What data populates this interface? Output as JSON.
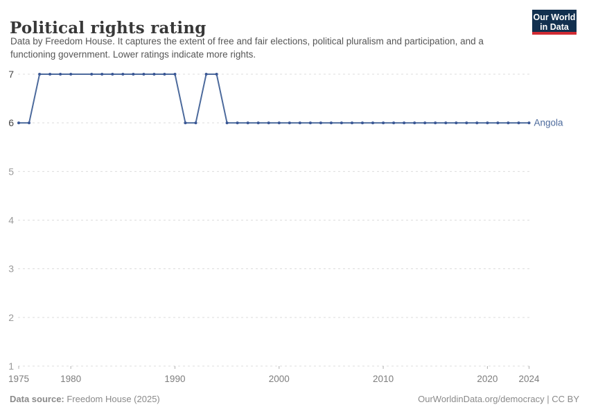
{
  "header": {
    "title": "Political rights rating",
    "subtitle": "Data by Freedom House. It captures the extent of free and fair elections, political pluralism and participation, and a functioning government. Lower ratings indicate more rights.",
    "logo": {
      "line1": "Our World",
      "line2": "in Data",
      "bg_color": "#12304f",
      "accent_color": "#d12b33"
    }
  },
  "chart_data": {
    "type": "line",
    "title": "Political rights rating",
    "entity_label": "Angola",
    "x_range": [
      1975,
      2024
    ],
    "y_range": [
      1,
      7
    ],
    "x_ticks": [
      1975,
      1980,
      1990,
      2000,
      2010,
      2020,
      2024
    ],
    "y_ticks": [
      1,
      2,
      3,
      4,
      5,
      6,
      7
    ],
    "grid": "horizontal-dashed",
    "legend_position": "end-of-line",
    "colors": {
      "line": "#4c6a9c",
      "marker": "#3a5795",
      "gridline": "#dcdcdc",
      "axis_label_active": "#474747",
      "axis_label_faded": "#9a9a9a",
      "x_axis_label": "#7d7d7d",
      "tick_mark": "#b0b0b0"
    },
    "series": [
      {
        "name": "Angola",
        "color": "#4c6a9c",
        "marker_color": "#3a5795",
        "points": [
          [
            1975,
            6
          ],
          [
            1976,
            6
          ],
          [
            1977,
            7
          ],
          [
            1978,
            7
          ],
          [
            1979,
            7
          ],
          [
            1980,
            7
          ],
          [
            1982,
            7
          ],
          [
            1983,
            7
          ],
          [
            1984,
            7
          ],
          [
            1985,
            7
          ],
          [
            1986,
            7
          ],
          [
            1987,
            7
          ],
          [
            1988,
            7
          ],
          [
            1989,
            7
          ],
          [
            1990,
            7
          ],
          [
            1991,
            6
          ],
          [
            1992,
            6
          ],
          [
            1993,
            7
          ],
          [
            1994,
            7
          ],
          [
            1995,
            6
          ],
          [
            1996,
            6
          ],
          [
            1997,
            6
          ],
          [
            1998,
            6
          ],
          [
            1999,
            6
          ],
          [
            2000,
            6
          ],
          [
            2001,
            6
          ],
          [
            2002,
            6
          ],
          [
            2003,
            6
          ],
          [
            2004,
            6
          ],
          [
            2005,
            6
          ],
          [
            2006,
            6
          ],
          [
            2007,
            6
          ],
          [
            2008,
            6
          ],
          [
            2009,
            6
          ],
          [
            2010,
            6
          ],
          [
            2011,
            6
          ],
          [
            2012,
            6
          ],
          [
            2013,
            6
          ],
          [
            2014,
            6
          ],
          [
            2015,
            6
          ],
          [
            2016,
            6
          ],
          [
            2017,
            6
          ],
          [
            2018,
            6
          ],
          [
            2019,
            6
          ],
          [
            2020,
            6
          ],
          [
            2021,
            6
          ],
          [
            2022,
            6
          ],
          [
            2023,
            6
          ],
          [
            2024,
            6
          ]
        ]
      }
    ]
  },
  "footer": {
    "source_label": "Data source:",
    "source_value": " Freedom House (2025)",
    "right_text": "OurWorldinData.org/democracy | CC BY"
  }
}
